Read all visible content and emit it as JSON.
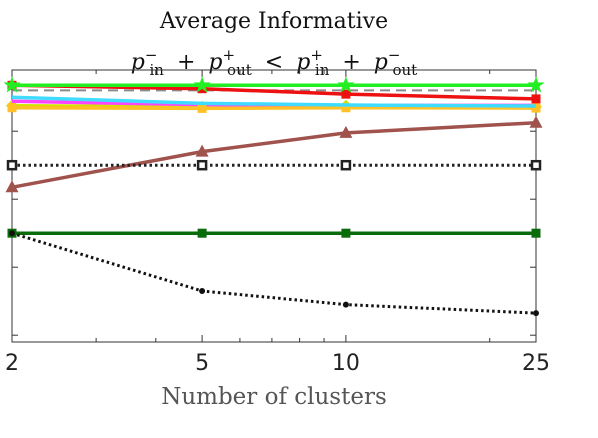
{
  "chart_data": {
    "type": "line",
    "title_line1": "Average Informative",
    "title_line2": {
      "lhs_a": "p",
      "lhs_a_sub": "in",
      "lhs_a_sup": "−",
      "op1": "+",
      "lhs_b": "p",
      "lhs_b_sub": "out",
      "lhs_b_sup": "+",
      "rel": "<",
      "rhs_a": "p",
      "rhs_a_sub": "in",
      "rhs_a_sup": "+",
      "op2": "+",
      "rhs_b": "p",
      "rhs_b_sub": "out",
      "rhs_b_sup": "−"
    },
    "xlabel": "Number of clusters",
    "xscale": "log",
    "x": [
      2,
      5,
      10,
      25
    ],
    "xticks": [
      "2",
      "5",
      "10",
      "25"
    ],
    "xlim": [
      2,
      25
    ],
    "ylim": [
      0.18,
      0.98
    ],
    "ytick_values": [
      0.2,
      0.4,
      0.6,
      0.8
    ],
    "grid": false,
    "series": [
      {
        "color": "#8a8a8a",
        "style": "dashed",
        "marker": "none",
        "values": [
          0.92,
          0.92,
          0.92,
          0.92
        ]
      },
      {
        "color": "#d4e000",
        "style": "solid",
        "marker": "diamond",
        "values": [
          0.875,
          0.872,
          0.875,
          0.872
        ]
      },
      {
        "color": "#ff44ff",
        "style": "solid",
        "marker": "none",
        "values": [
          0.888,
          0.878,
          0.876,
          0.876
        ]
      },
      {
        "color": "#ffc125",
        "style": "solid",
        "marker": "square",
        "values": [
          0.869,
          0.867,
          0.869,
          0.868
        ]
      },
      {
        "color": "#3fdcff",
        "style": "solid",
        "marker": "none",
        "values": [
          0.9,
          0.882,
          0.877,
          0.874
        ]
      },
      {
        "color": "#ee1111",
        "style": "solid",
        "marker": "square",
        "values": [
          0.935,
          0.925,
          0.909,
          0.895
        ]
      },
      {
        "color": "#22ee22",
        "style": "solid",
        "marker": "star",
        "values": [
          0.935,
          0.935,
          0.935,
          0.935
        ]
      },
      {
        "color": "#a0524d",
        "style": "solid",
        "marker": "triangle",
        "values": [
          0.635,
          0.74,
          0.795,
          0.825
        ]
      },
      {
        "color": "#222222",
        "style": "dotted",
        "marker": "square-open",
        "values": [
          0.7,
          0.7,
          0.7,
          0.7
        ]
      },
      {
        "color": "#0a6b0a",
        "style": "solid",
        "marker": "square",
        "values": [
          0.5,
          0.5,
          0.5,
          0.5
        ]
      },
      {
        "color": "#111111",
        "style": "dotted",
        "marker": "dot",
        "values": [
          0.5,
          0.33,
          0.29,
          0.265
        ]
      }
    ]
  }
}
